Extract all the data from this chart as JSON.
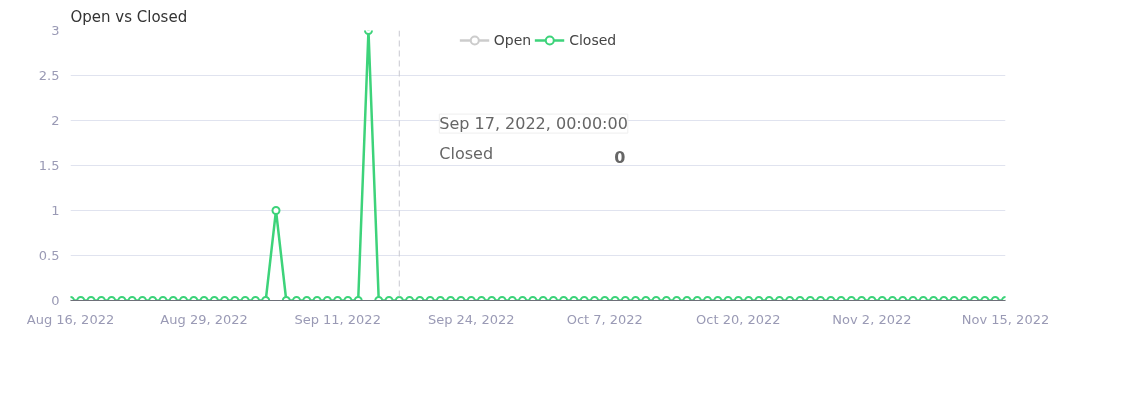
{
  "chart_data": {
    "type": "line",
    "title": "Open vs Closed",
    "x": [
      "2022-08-16",
      "2022-08-17",
      "2022-08-18",
      "2022-08-19",
      "2022-08-20",
      "2022-08-21",
      "2022-08-22",
      "2022-08-23",
      "2022-08-24",
      "2022-08-25",
      "2022-08-26",
      "2022-08-27",
      "2022-08-28",
      "2022-08-29",
      "2022-08-30",
      "2022-08-31",
      "2022-09-01",
      "2022-09-02",
      "2022-09-03",
      "2022-09-04",
      "2022-09-05",
      "2022-09-06",
      "2022-09-07",
      "2022-09-08",
      "2022-09-09",
      "2022-09-10",
      "2022-09-11",
      "2022-09-12",
      "2022-09-13",
      "2022-09-14",
      "2022-09-15",
      "2022-09-16",
      "2022-09-17",
      "2022-09-18",
      "2022-09-19",
      "2022-09-20",
      "2022-09-21",
      "2022-09-22",
      "2022-09-23",
      "2022-09-24",
      "2022-09-25",
      "2022-09-26",
      "2022-09-27",
      "2022-09-28",
      "2022-09-29",
      "2022-09-30",
      "2022-10-01",
      "2022-10-02",
      "2022-10-03",
      "2022-10-04",
      "2022-10-05",
      "2022-10-06",
      "2022-10-07",
      "2022-10-08",
      "2022-10-09",
      "2022-10-10",
      "2022-10-11",
      "2022-10-12",
      "2022-10-13",
      "2022-10-14",
      "2022-10-15",
      "2022-10-16",
      "2022-10-17",
      "2022-10-18",
      "2022-10-19",
      "2022-10-20",
      "2022-10-21",
      "2022-10-22",
      "2022-10-23",
      "2022-10-24",
      "2022-10-25",
      "2022-10-26",
      "2022-10-27",
      "2022-10-28",
      "2022-10-29",
      "2022-10-30",
      "2022-10-31",
      "2022-11-01",
      "2022-11-02",
      "2022-11-03",
      "2022-11-04",
      "2022-11-05",
      "2022-11-06",
      "2022-11-07",
      "2022-11-08",
      "2022-11-09",
      "2022-11-10",
      "2022-11-11",
      "2022-11-12",
      "2022-11-13",
      "2022-11-14",
      "2022-11-15"
    ],
    "series": [
      {
        "name": "Open",
        "color": "#cccccc",
        "values": [
          null,
          null,
          null,
          null,
          null,
          null,
          null,
          null,
          null,
          null,
          null,
          null,
          null,
          null,
          null,
          null,
          null,
          null,
          null,
          null,
          null,
          null,
          null,
          null,
          null,
          null,
          null,
          null,
          null,
          null,
          null,
          null,
          null,
          null,
          null,
          null,
          null,
          null,
          null,
          null,
          null,
          null,
          null,
          null,
          null,
          null,
          null,
          null,
          null,
          null,
          null,
          null,
          null,
          null,
          null,
          null,
          null,
          null,
          null,
          null,
          null,
          null,
          null,
          null,
          null,
          null,
          null,
          null,
          null,
          null,
          null,
          null,
          null,
          null,
          null,
          null,
          null,
          null,
          null,
          null,
          null,
          null,
          null,
          null,
          null,
          null,
          null,
          null,
          null,
          null,
          null,
          null
        ]
      },
      {
        "name": "Closed",
        "color": "#3dd37a",
        "values": [
          0,
          0,
          0,
          0,
          0,
          0,
          0,
          0,
          0,
          0,
          0,
          0,
          0,
          0,
          0,
          0,
          0,
          0,
          0,
          0,
          1,
          0,
          0,
          0,
          0,
          0,
          0,
          0,
          0,
          3,
          0,
          0,
          0,
          0,
          0,
          0,
          0,
          0,
          0,
          0,
          0,
          0,
          0,
          0,
          0,
          0,
          0,
          0,
          0,
          0,
          0,
          0,
          0,
          0,
          0,
          0,
          0,
          0,
          0,
          0,
          0,
          0,
          0,
          0,
          0,
          0,
          0,
          0,
          0,
          0,
          0,
          0,
          0,
          0,
          0,
          0,
          0,
          0,
          0,
          0,
          0,
          0,
          0,
          0,
          0,
          0,
          0,
          0,
          0,
          0,
          0,
          0
        ]
      }
    ],
    "xlim": [
      "2022-08-16",
      "2022-11-15"
    ],
    "xticks": [
      {
        "value": "2022-08-16",
        "label": "Aug 16, 2022"
      },
      {
        "value": "2022-08-29",
        "label": "Aug 29, 2022"
      },
      {
        "value": "2022-09-11",
        "label": "Sep 11, 2022"
      },
      {
        "value": "2022-09-24",
        "label": "Sep 24, 2022"
      },
      {
        "value": "2022-10-07",
        "label": "Oct 7, 2022"
      },
      {
        "value": "2022-10-20",
        "label": "Oct 20, 2022"
      },
      {
        "value": "2022-11-02",
        "label": "Nov 2, 2022"
      },
      {
        "value": "2022-11-15",
        "label": "Nov 15, 2022"
      }
    ],
    "ylim": [
      0,
      3
    ],
    "yticks": [
      0,
      0.5,
      1,
      1.5,
      2,
      2.5,
      3
    ],
    "grid": "y",
    "legend": "top",
    "marker": "circle",
    "line_style": "solid",
    "ref_lines": [
      {
        "axis": "x",
        "value": "2022-09-17",
        "color": "#c8c8d0",
        "line_style": "dashed"
      }
    ],
    "annotations": [
      "Sep 17, 2022, 00:00:00",
      "Closed",
      "0"
    ]
  }
}
